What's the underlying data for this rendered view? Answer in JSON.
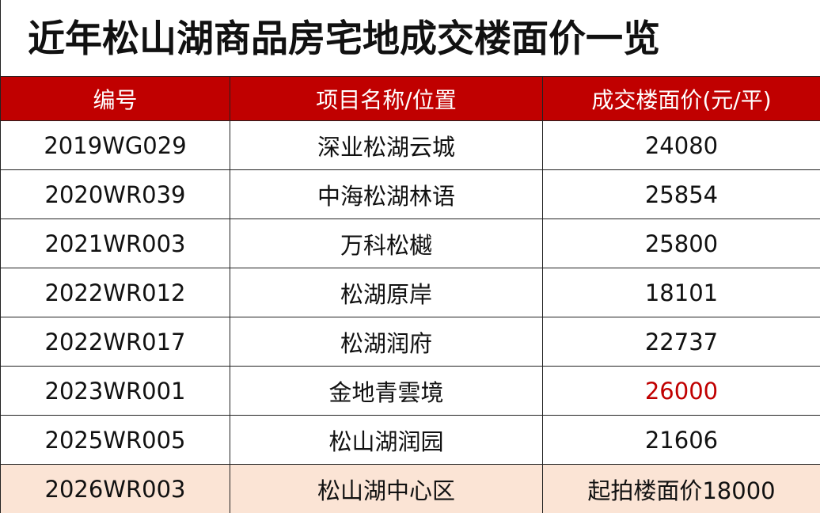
{
  "header": {
    "title": "近年松山湖商品房宅地成交楼面价一览"
  },
  "table": {
    "columns": [
      "编号",
      "项目名称/位置",
      "成交楼面价(元/平)"
    ],
    "rows": [
      [
        "2019WG029",
        "深业松湖云城",
        "24080"
      ],
      [
        "2020WR039",
        "中海松湖林语",
        "25854"
      ],
      [
        "2021WR003",
        "万科松樾",
        "25800"
      ],
      [
        "2022WR012",
        "松湖原岸",
        "18101"
      ],
      [
        "2022WR017",
        "松湖润府",
        "22737"
      ],
      [
        "2023WR001",
        "金地青雲境",
        "26000"
      ],
      [
        "2025WR005",
        "松山湖润园",
        "21606"
      ],
      [
        "2026WR003",
        "松山湖中心区",
        "起拍楼面价18000"
      ]
    ]
  }
}
